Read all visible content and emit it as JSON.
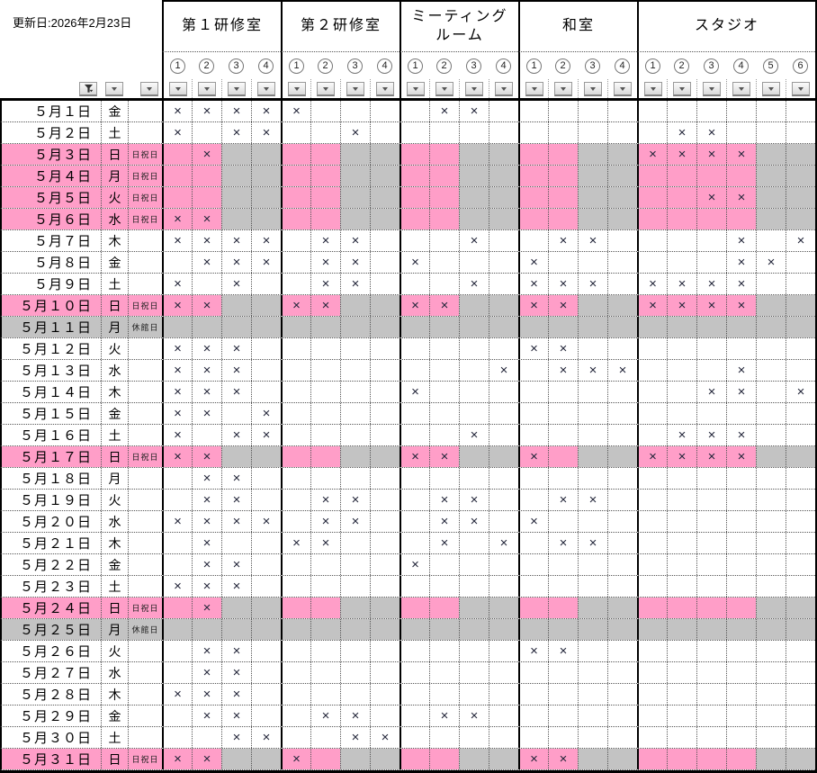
{
  "meta": {
    "updated_label": "更新日:2026年2月23日"
  },
  "legend": {
    "booked_mark": "×",
    "holiday_note": "日祝日",
    "closed_note": "休館日"
  },
  "colors": {
    "holiday_pink": "#FF9EC8",
    "closed_gray": "#C3C3C3",
    "mark_color": "#23263a"
  },
  "slot_labels": [
    "①",
    "②",
    "③",
    "④",
    "⑤",
    "⑥"
  ],
  "rooms": [
    {
      "name": "第１研修室",
      "slots": 4,
      "holiday_pink_slots": 2
    },
    {
      "name": "第２研修室",
      "slots": 4,
      "holiday_pink_slots": 2
    },
    {
      "name": "ミーティング\nルーム",
      "slots": 4,
      "holiday_pink_slots": 2
    },
    {
      "name": "和室",
      "slots": 4,
      "holiday_pink_slots": 2
    },
    {
      "name": "スタジオ",
      "slots": 6,
      "holiday_pink_slots": 4
    }
  ],
  "rows": [
    {
      "date": "５月１日",
      "dow": "金",
      "note": "",
      "type": "normal",
      "marks": [
        [
          1,
          2,
          3,
          4
        ],
        [
          1
        ],
        [
          2,
          3
        ],
        [],
        []
      ]
    },
    {
      "date": "５月２日",
      "dow": "土",
      "note": "",
      "type": "normal",
      "marks": [
        [
          1,
          3,
          4
        ],
        [
          3
        ],
        [],
        [],
        [
          2,
          3
        ]
      ]
    },
    {
      "date": "５月３日",
      "dow": "日",
      "note": "日祝日",
      "type": "holiday",
      "marks": [
        [
          2
        ],
        [],
        [],
        [],
        [
          1,
          2,
          3,
          4
        ]
      ]
    },
    {
      "date": "５月４日",
      "dow": "月",
      "note": "日祝日",
      "type": "holiday",
      "marks": [
        [],
        [],
        [],
        [],
        []
      ]
    },
    {
      "date": "５月５日",
      "dow": "火",
      "note": "日祝日",
      "type": "holiday",
      "marks": [
        [],
        [],
        [],
        [],
        [
          3,
          4
        ]
      ]
    },
    {
      "date": "５月６日",
      "dow": "水",
      "note": "日祝日",
      "type": "holiday",
      "marks": [
        [
          1,
          2
        ],
        [],
        [],
        [],
        []
      ]
    },
    {
      "date": "５月７日",
      "dow": "木",
      "note": "",
      "type": "normal",
      "marks": [
        [
          1,
          2,
          3,
          4
        ],
        [
          2,
          3
        ],
        [
          3
        ],
        [
          2,
          3
        ],
        [
          4,
          6
        ]
      ]
    },
    {
      "date": "５月８日",
      "dow": "金",
      "note": "",
      "type": "normal",
      "marks": [
        [
          2,
          3,
          4
        ],
        [
          2,
          3
        ],
        [
          1
        ],
        [
          1
        ],
        [
          4,
          5
        ]
      ]
    },
    {
      "date": "５月９日",
      "dow": "土",
      "note": "",
      "type": "normal",
      "marks": [
        [
          1,
          3
        ],
        [
          2,
          3
        ],
        [
          3
        ],
        [
          1,
          2,
          3
        ],
        [
          1,
          2,
          3,
          4
        ]
      ]
    },
    {
      "date": "５月１０日",
      "dow": "日",
      "note": "日祝日",
      "type": "holiday",
      "marks": [
        [
          1,
          2
        ],
        [
          1,
          2
        ],
        [
          1,
          2
        ],
        [
          1,
          2
        ],
        [
          1,
          2,
          3,
          4
        ]
      ]
    },
    {
      "date": "５月１１日",
      "dow": "月",
      "note": "休館日",
      "type": "closed",
      "marks": [
        [],
        [],
        [],
        [],
        []
      ]
    },
    {
      "date": "５月１２日",
      "dow": "火",
      "note": "",
      "type": "normal",
      "marks": [
        [
          1,
          2,
          3
        ],
        [],
        [],
        [
          1,
          2
        ],
        []
      ]
    },
    {
      "date": "５月１３日",
      "dow": "水",
      "note": "",
      "type": "normal",
      "marks": [
        [
          1,
          2,
          3
        ],
        [],
        [
          4
        ],
        [
          2,
          3,
          4
        ],
        [
          4
        ]
      ]
    },
    {
      "date": "５月１４日",
      "dow": "木",
      "note": "",
      "type": "normal",
      "marks": [
        [
          1,
          2,
          3
        ],
        [],
        [
          1
        ],
        [],
        [
          3,
          4,
          6
        ]
      ]
    },
    {
      "date": "５月１５日",
      "dow": "金",
      "note": "",
      "type": "normal",
      "marks": [
        [
          1,
          2,
          4
        ],
        [],
        [],
        [],
        []
      ]
    },
    {
      "date": "５月１６日",
      "dow": "土",
      "note": "",
      "type": "normal",
      "marks": [
        [
          1,
          3,
          4
        ],
        [],
        [
          3
        ],
        [],
        [
          2,
          3,
          4
        ]
      ]
    },
    {
      "date": "５月１７日",
      "dow": "日",
      "note": "日祝日",
      "type": "holiday",
      "marks": [
        [
          1,
          2
        ],
        [],
        [
          1,
          2
        ],
        [
          1
        ],
        [
          1,
          2,
          3,
          4
        ]
      ]
    },
    {
      "date": "５月１８日",
      "dow": "月",
      "note": "",
      "type": "normal",
      "marks": [
        [
          2,
          3
        ],
        [],
        [],
        [],
        []
      ]
    },
    {
      "date": "５月１９日",
      "dow": "火",
      "note": "",
      "type": "normal",
      "marks": [
        [
          2,
          3
        ],
        [
          2,
          3
        ],
        [
          2,
          3
        ],
        [
          2,
          3
        ],
        []
      ]
    },
    {
      "date": "５月２０日",
      "dow": "水",
      "note": "",
      "type": "normal",
      "marks": [
        [
          1,
          2,
          3,
          4
        ],
        [
          2,
          3
        ],
        [
          2,
          3
        ],
        [
          1
        ],
        []
      ]
    },
    {
      "date": "５月２１日",
      "dow": "木",
      "note": "",
      "type": "normal",
      "marks": [
        [
          2
        ],
        [
          1,
          2
        ],
        [
          2,
          4
        ],
        [
          2,
          3
        ],
        []
      ]
    },
    {
      "date": "５月２２日",
      "dow": "金",
      "note": "",
      "type": "normal",
      "marks": [
        [
          2,
          3
        ],
        [],
        [
          1
        ],
        [],
        []
      ]
    },
    {
      "date": "５月２３日",
      "dow": "土",
      "note": "",
      "type": "normal",
      "marks": [
        [
          1,
          2,
          3
        ],
        [],
        [],
        [],
        []
      ]
    },
    {
      "date": "５月２４日",
      "dow": "日",
      "note": "日祝日",
      "type": "holiday",
      "marks": [
        [
          2
        ],
        [],
        [],
        [],
        []
      ]
    },
    {
      "date": "５月２５日",
      "dow": "月",
      "note": "休館日",
      "type": "closed",
      "marks": [
        [],
        [],
        [],
        [],
        []
      ]
    },
    {
      "date": "５月２６日",
      "dow": "火",
      "note": "",
      "type": "normal",
      "marks": [
        [
          2,
          3
        ],
        [],
        [],
        [
          1,
          2
        ],
        []
      ]
    },
    {
      "date": "５月２７日",
      "dow": "水",
      "note": "",
      "type": "normal",
      "marks": [
        [
          2,
          3
        ],
        [],
        [],
        [],
        []
      ]
    },
    {
      "date": "５月２８日",
      "dow": "木",
      "note": "",
      "type": "normal",
      "marks": [
        [
          1,
          2,
          3
        ],
        [],
        [],
        [],
        []
      ]
    },
    {
      "date": "５月２９日",
      "dow": "金",
      "note": "",
      "type": "normal",
      "marks": [
        [
          2,
          3
        ],
        [
          2,
          3
        ],
        [
          2,
          3
        ],
        [],
        []
      ]
    },
    {
      "date": "５月３０日",
      "dow": "土",
      "note": "",
      "type": "normal",
      "marks": [
        [
          3,
          4
        ],
        [
          3,
          4
        ],
        [],
        [],
        []
      ]
    },
    {
      "date": "５月３１日",
      "dow": "日",
      "note": "日祝日",
      "type": "holiday",
      "marks": [
        [
          1,
          2
        ],
        [
          1
        ],
        [],
        [
          1,
          2
        ],
        []
      ]
    }
  ]
}
